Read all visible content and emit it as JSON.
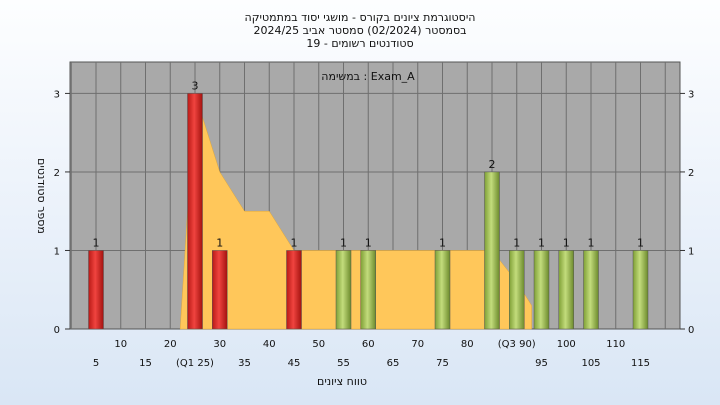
{
  "chart_data": {
    "type": "bar",
    "title_lines": [
      "היסטוגרמת ציונים בקורס - מושגי יסוד במתמטיקה",
      "בסמסטר  (02/2024)  סמסטר אביב 2024/25",
      "סטודנטים רשומים - 19"
    ],
    "annotation": "במשימה : Exam_A",
    "xlabel": "טווח ציונים",
    "ylabel": "מספר סטודנטים",
    "ylim": [
      0,
      3.4
    ],
    "y_ticks": [
      0,
      1,
      2,
      3
    ],
    "x_ticks_lower": [
      "5",
      "15",
      "(Q1 25)",
      "35",
      "45",
      "55",
      "65",
      "75",
      "(Q3 90)",
      "95",
      "105",
      "115"
    ],
    "x_ticks_upper": [
      "10",
      "20",
      "30",
      "40",
      "50",
      "60",
      "70",
      "80",
      "",
      "100",
      "110",
      ""
    ],
    "bars": [
      {
        "x": 5,
        "value": 1,
        "label": "1",
        "color": "red"
      },
      {
        "x": 25,
        "value": 3,
        "label": "3",
        "color": "red"
      },
      {
        "x": 30,
        "value": 1,
        "label": "1",
        "color": "red"
      },
      {
        "x": 45,
        "value": 1,
        "label": "1",
        "color": "red"
      },
      {
        "x": 55,
        "value": 1,
        "label": "1",
        "color": "green"
      },
      {
        "x": 60,
        "value": 1,
        "label": "1",
        "color": "green"
      },
      {
        "x": 75,
        "value": 1,
        "label": "1",
        "color": "green"
      },
      {
        "x": 85,
        "value": 2,
        "label": "2",
        "color": "green"
      },
      {
        "x": 90,
        "value": 1,
        "label": "1",
        "color": "green"
      },
      {
        "x": 95,
        "value": 1,
        "label": "1",
        "color": "green"
      },
      {
        "x": 100,
        "value": 1,
        "label": "1",
        "color": "green"
      },
      {
        "x": 105,
        "value": 1,
        "label": "1",
        "color": "green"
      },
      {
        "x": 115,
        "value": 1,
        "label": "1",
        "color": "green"
      }
    ],
    "area_series": {
      "x": [
        22,
        25,
        30,
        35,
        40,
        45,
        50,
        55,
        60,
        65,
        70,
        75,
        80,
        85,
        90,
        93
      ],
      "values": [
        0,
        3,
        2,
        1.5,
        1.5,
        1,
        1,
        1,
        1,
        1,
        1,
        1,
        1,
        1,
        0.6,
        0.3
      ]
    },
    "colors": {
      "plot_bg": "#a9a9a9",
      "grid": "#6f6f6f",
      "area": "#ffc75a",
      "bar_red": "#e8322e",
      "bar_green": "#a8c85a"
    }
  }
}
